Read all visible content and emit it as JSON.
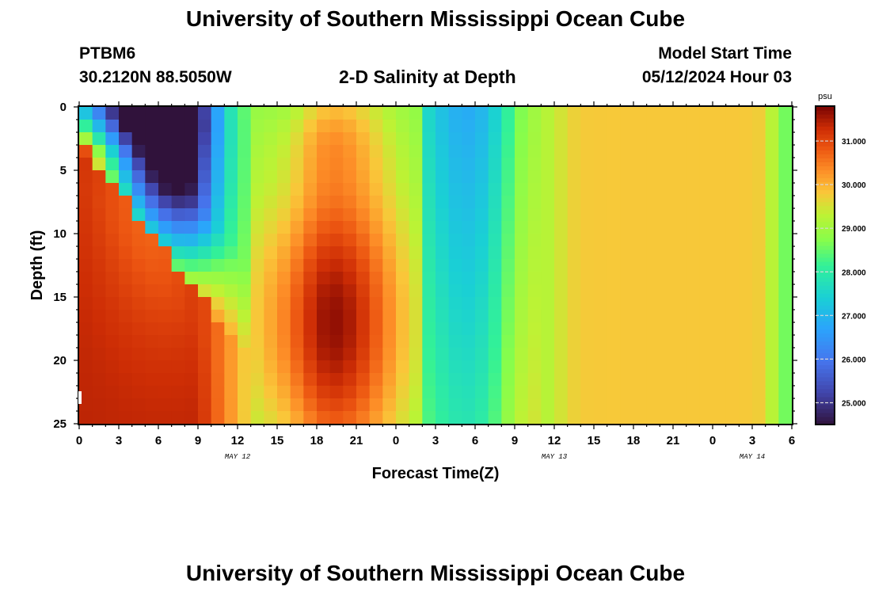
{
  "header": {
    "title": "University of Southern Mississippi Ocean Cube",
    "station": "PTBM6",
    "coords": "30.2120N  88.5050W",
    "subtitle": "2-D Salinity at Depth",
    "model_start_label": "Model Start Time",
    "model_start_value": "05/12/2024 Hour 03"
  },
  "footer": {
    "title": "University of Southern Mississippi Ocean Cube"
  },
  "chart_data": {
    "type": "heatmap",
    "title": "2-D Salinity at Depth",
    "xlabel": "Forecast Time(Z)",
    "ylabel": "Depth (ft)",
    "x_range_hours": [
      0,
      54
    ],
    "y_range_ft": [
      0,
      25
    ],
    "x_ticks": [
      "0",
      "3",
      "6",
      "9",
      "12",
      "15",
      "18",
      "21",
      "0",
      "3",
      "6",
      "9",
      "12",
      "15",
      "18",
      "21",
      "0",
      "3",
      "6"
    ],
    "y_ticks": [
      "0",
      "5",
      "10",
      "15",
      "20",
      "25"
    ],
    "date_labels": [
      {
        "text": "MAY 12",
        "hour": 12
      },
      {
        "text": "MAY 13",
        "hour": 36
      },
      {
        "text": "MAY 14",
        "hour": 51
      }
    ],
    "colorbar": {
      "unit": "psu",
      "min": 24.5,
      "max": 31.8,
      "labels": [
        "25.000",
        "26.000",
        "27.000",
        "28.000",
        "29.000",
        "30.000",
        "31.000"
      ],
      "label_values": [
        25,
        26,
        27,
        28,
        29,
        30,
        31
      ]
    },
    "grid": {
      "x_step_hours": 1,
      "y_step_ft": 1,
      "description": "salinity (psu) sampled hourly at 1 ft depth intervals, values estimated from color map",
      "features": [
        {
          "kind": "fresh_surface_plume",
          "hours": [
            0,
            15
          ],
          "min_value": 24.6
        },
        {
          "kind": "salty_bottom_intrusion",
          "hours": [
            0,
            8
          ],
          "max_value": 31.5
        },
        {
          "kind": "salty_core",
          "hours": [
            13,
            26
          ],
          "max_value": 31.7
        },
        {
          "kind": "fresh_band",
          "hours": [
            26,
            35
          ],
          "min_value": 26.8
        },
        {
          "kind": "uniform_layer",
          "hours": [
            35,
            54
          ],
          "value": 29.8
        }
      ]
    }
  }
}
